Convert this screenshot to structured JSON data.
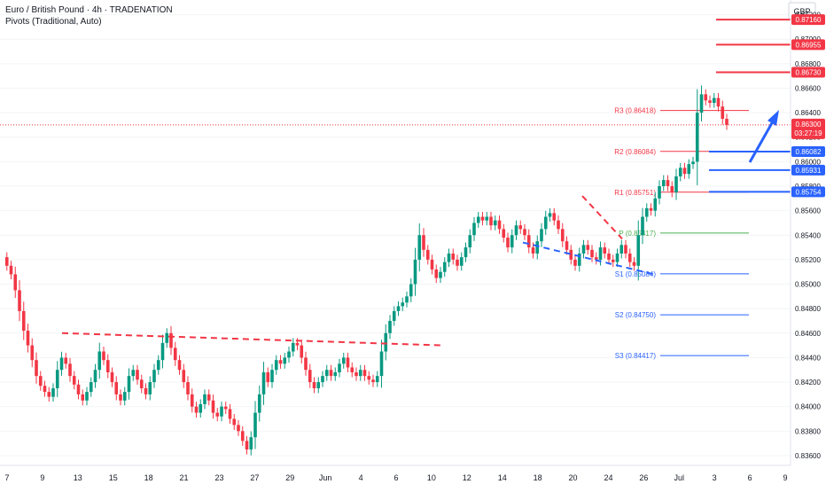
{
  "header": {
    "title": "Euro / British Pound · 4h · TRADENATION",
    "indicator": "Pivots (Traditional, Auto)"
  },
  "chart_data": {
    "type": "candlestick",
    "currency": "GBP",
    "ylim": [
      0.8352,
      0.8732
    ],
    "x_ticks": [
      "7",
      "9",
      "13",
      "15",
      "18",
      "21",
      "23",
      "27",
      "29",
      "Jun",
      "4",
      "6",
      "10",
      "12",
      "14",
      "18",
      "20",
      "24",
      "26",
      "Jul",
      "3",
      "6",
      "9"
    ],
    "y_ticks": [
      "0.87200",
      "0.87000",
      "0.86800",
      "0.86600",
      "0.86400",
      "0.86200",
      "0.86000",
      "0.85800",
      "0.85600",
      "0.85400",
      "0.85200",
      "0.85000",
      "0.84800",
      "0.84600",
      "0.84400",
      "0.84200",
      "0.84000",
      "0.83800",
      "0.83600"
    ],
    "price_path": [
      0.8522,
      0.8515,
      0.8508,
      0.8495,
      0.8478,
      0.8462,
      0.845,
      0.8438,
      0.8425,
      0.8417,
      0.8412,
      0.8408,
      0.8415,
      0.843,
      0.844,
      0.8435,
      0.8425,
      0.8418,
      0.841,
      0.8405,
      0.8412,
      0.842,
      0.843,
      0.8445,
      0.8438,
      0.8428,
      0.842,
      0.841,
      0.8405,
      0.8412,
      0.8425,
      0.843,
      0.8422,
      0.8415,
      0.841,
      0.842,
      0.843,
      0.8438,
      0.8452,
      0.846,
      0.8448,
      0.8438,
      0.843,
      0.842,
      0.841,
      0.84,
      0.8395,
      0.8402,
      0.841,
      0.8405,
      0.8395,
      0.8392,
      0.84,
      0.8398,
      0.839,
      0.8385,
      0.838,
      0.8372,
      0.8365,
      0.8375,
      0.8395,
      0.841,
      0.8428,
      0.842,
      0.843,
      0.8438,
      0.8435,
      0.844,
      0.8445,
      0.8452,
      0.845,
      0.844,
      0.843,
      0.842,
      0.8415,
      0.842,
      0.8425,
      0.843,
      0.8425,
      0.8428,
      0.8435,
      0.844,
      0.8432,
      0.8428,
      0.8425,
      0.843,
      0.8425,
      0.8422,
      0.842,
      0.8425,
      0.8445,
      0.846,
      0.847,
      0.8478,
      0.8482,
      0.8485,
      0.849,
      0.85,
      0.852,
      0.854,
      0.8528,
      0.852,
      0.8512,
      0.8505,
      0.851,
      0.8518,
      0.8525,
      0.852,
      0.8515,
      0.8522,
      0.853,
      0.854,
      0.855,
      0.8555,
      0.8552,
      0.8555,
      0.8548,
      0.8552,
      0.8545,
      0.8538,
      0.853,
      0.854,
      0.8548,
      0.8545,
      0.854,
      0.853,
      0.8525,
      0.8535,
      0.8545,
      0.8555,
      0.8558,
      0.8552,
      0.8545,
      0.8535,
      0.8528,
      0.852,
      0.8515,
      0.8525,
      0.8532,
      0.8528,
      0.8522,
      0.852,
      0.853,
      0.8525,
      0.852,
      0.8518,
      0.8525,
      0.8532,
      0.8525,
      0.8518,
      0.8515,
      0.854,
      0.8555,
      0.8562,
      0.856,
      0.857,
      0.858,
      0.8585,
      0.858,
      0.8575,
      0.8588,
      0.8595,
      0.859,
      0.8598,
      0.86,
      0.864,
      0.8655,
      0.865,
      0.8648,
      0.8652,
      0.8645,
      0.8635,
      0.863
    ],
    "current_price": "0.86300",
    "countdown": "03:27:19",
    "pivots": [
      {
        "label": "R3 (0.86418)",
        "value": 0.86418,
        "color": "#f23645"
      },
      {
        "label": "R2 (0.86084)",
        "value": 0.86084,
        "color": "#f23645"
      },
      {
        "label": "R1 (0.85751)",
        "value": 0.85751,
        "color": "#f23645"
      },
      {
        "label": "P (0.85417)",
        "value": 0.85417,
        "color": "#4caf50"
      },
      {
        "label": "S1 (0.85084)",
        "value": 0.85084,
        "color": "#2962ff"
      },
      {
        "label": "S2 (0.84750)",
        "value": 0.8475,
        "color": "#2962ff"
      },
      {
        "label": "S3 (0.84417)",
        "value": 0.84417,
        "color": "#2962ff"
      }
    ],
    "price_tags": [
      {
        "label": "0.87160",
        "value": 0.8716,
        "kind": "resistance"
      },
      {
        "label": "0.86955",
        "value": 0.86955,
        "kind": "resistance"
      },
      {
        "label": "0.86730",
        "value": 0.8673,
        "kind": "resistance"
      },
      {
        "label": "0.86082",
        "value": 0.86082,
        "kind": "support"
      },
      {
        "label": "0.85931",
        "value": 0.85931,
        "kind": "support"
      },
      {
        "label": "0.85754",
        "value": 0.85754,
        "kind": "support"
      }
    ],
    "trendlines": [
      {
        "kind": "red-dashed",
        "points": [
          [
            0.846,
            0
          ],
          [
            0.845,
            1
          ]
        ]
      },
      {
        "kind": "blue-dashed",
        "points": [
          [
            0.8534,
            0
          ],
          [
            0.8508,
            1
          ]
        ]
      },
      {
        "kind": "red-dashed",
        "points": [
          [
            0.8572,
            0
          ],
          [
            0.8537,
            1
          ]
        ]
      }
    ],
    "colors": {
      "up": "#089981",
      "down": "#f23645",
      "support": "#2962ff",
      "resistance": "#f23645",
      "pivot": "#4caf50",
      "current": "#f23645"
    }
  }
}
